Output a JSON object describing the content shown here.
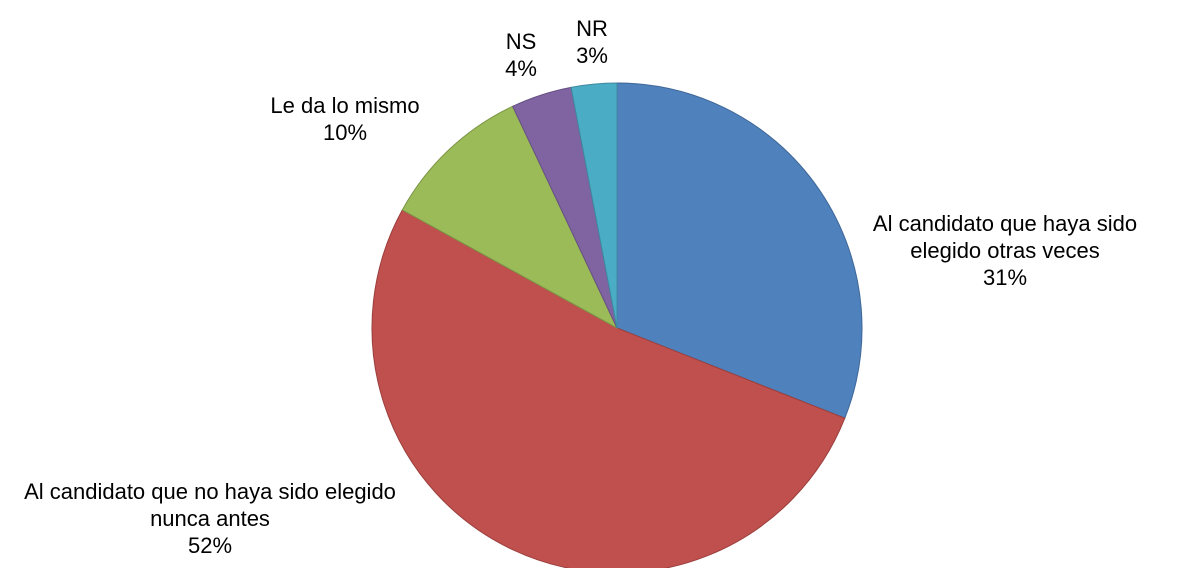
{
  "chart_data": {
    "type": "pie",
    "categories": [
      "Al candidato que haya sido elegido otras veces",
      "Al candidato que no haya sido elegido nunca antes",
      "Le da lo mismo",
      "NS",
      "NR"
    ],
    "values": [
      31,
      52,
      10,
      4,
      3
    ],
    "value_labels": [
      "31%",
      "52%",
      "10%",
      "4%",
      "3%"
    ],
    "colors": [
      "#4f81bd",
      "#c0504d",
      "#9bbb59",
      "#8064a2",
      "#4bacc6"
    ]
  }
}
